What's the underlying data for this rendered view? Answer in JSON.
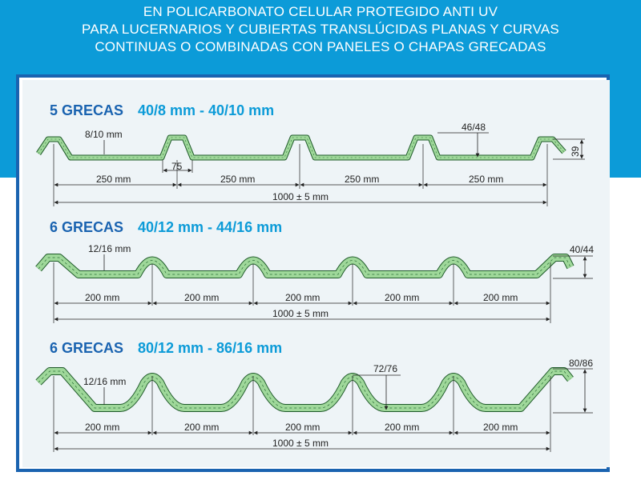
{
  "header": {
    "line1": "EN POLICARBONATO CELULAR PROTEGIDO ANTI UV",
    "line2": "PARA LUCERNARIOS Y CUBIERTAS TRANSLÚCIDAS PLANAS Y CURVAS",
    "line3": "CONTINUAS O COMBINADAS CON PANELES O CHAPAS GRECADAS"
  },
  "colors": {
    "banner": "#0c9bd8",
    "frame": "#1a63b0",
    "profile_fill": "#9fd89a",
    "profile_stroke": "#1f5a2a"
  },
  "sections": [
    {
      "title_a": "5 GRECAS",
      "title_b": "40/8 mm - 40/10 mm",
      "thickness": "8/10 mm",
      "rib_width": "75",
      "rib_height": "46/48",
      "height": "39",
      "spans": [
        "250 mm",
        "250 mm",
        "250 mm",
        "250 mm"
      ],
      "total": "1000 ± 5 mm"
    },
    {
      "title_a": "6 GRECAS",
      "title_b": "40/12 mm - 44/16 mm",
      "thickness": "12/16 mm",
      "height": "40/44",
      "spans": [
        "200 mm",
        "200 mm",
        "200 mm",
        "200 mm",
        "200 mm"
      ],
      "total": "1000 ± 5 mm"
    },
    {
      "title_a": "6 GRECAS",
      "title_b": "80/12 mm - 86/16 mm",
      "thickness": "12/16 mm",
      "rib_height": "72/76",
      "height": "80/86",
      "spans": [
        "200 mm",
        "200 mm",
        "200 mm",
        "200 mm",
        "200 mm"
      ],
      "total": "1000 ± 5 mm"
    }
  ]
}
